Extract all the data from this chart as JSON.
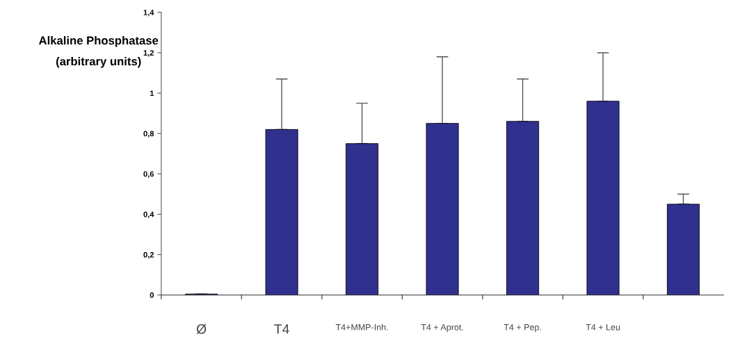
{
  "chart_data": {
    "type": "bar",
    "ylabel": "Alkaline Phosphatase\n(arbitrary units)",
    "categories": [
      "Ø",
      "T4",
      "T4+MMP-Inh.",
      "T4 + Aprot.",
      "T4 + Pep.",
      "T4 + Leu",
      null
    ],
    "values": [
      0.005,
      0.82,
      0.75,
      0.85,
      0.86,
      0.96,
      0.45
    ],
    "errors": [
      null,
      [
        0.82,
        1.07
      ],
      [
        0.75,
        0.95
      ],
      [
        0.85,
        1.18
      ],
      [
        0.86,
        1.07
      ],
      [
        0.96,
        1.2
      ],
      [
        0.45,
        0.5
      ]
    ],
    "color": "#30308f",
    "ylim": [
      0,
      1.4
    ],
    "yticks": [
      0,
      {
        "value": 0.2,
        "label": "0,2"
      },
      {
        "value": 0.4,
        "label": "0,4"
      },
      {
        "value": 0.6,
        "label": "0,6"
      },
      {
        "value": 0.8,
        "label": "0,8"
      },
      1,
      {
        "value": 1.2,
        "label": "1,2"
      },
      {
        "value": 1.4,
        "label": "1,4"
      }
    ],
    "grid": false,
    "legend": false
  }
}
